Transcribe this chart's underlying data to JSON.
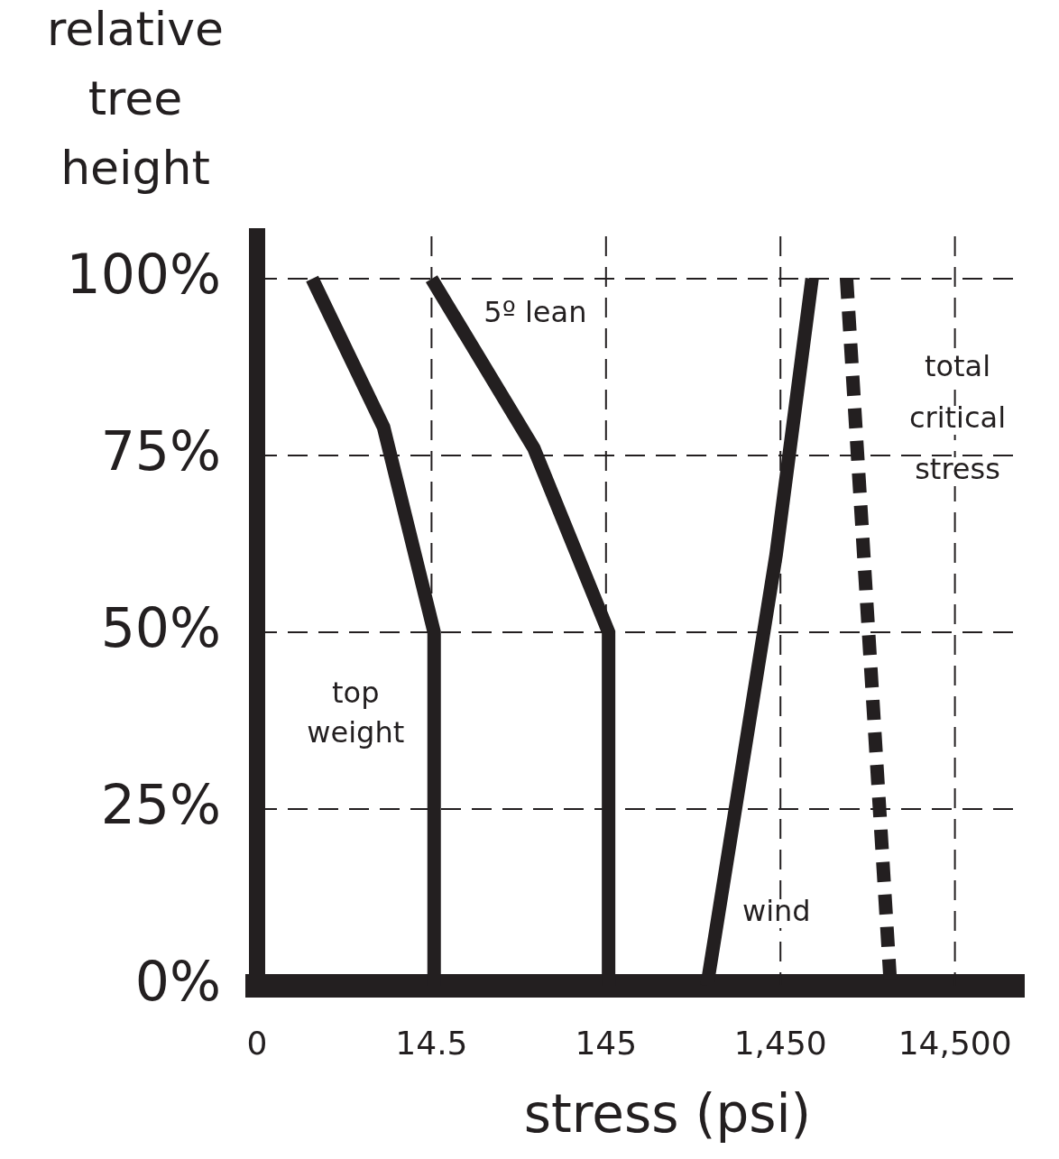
{
  "chart_data": {
    "type": "line",
    "xlabel": "stress (psi)",
    "ylabel": "relative tree height",
    "log": "x",
    "xlim": [
      0,
      36000
    ],
    "xticks": [
      0,
      14.5,
      145,
      {
        "value": 1450,
        "label": "1,450"
      },
      {
        "value": 14500,
        "label": "14,500"
      }
    ],
    "ylim": [
      0,
      106
    ],
    "yticks": [
      {
        "value": 0,
        "label": "0%"
      },
      {
        "value": 25,
        "label": "25%"
      },
      {
        "value": 50,
        "label": "50%"
      },
      {
        "value": 75,
        "label": "75%"
      },
      {
        "value": 100,
        "label": "100%"
      }
    ],
    "grid": true,
    "legend": false,
    "marker": "none",
    "series": [
      {
        "name": "top weight",
        "color": "#231f20",
        "line_style": "solid",
        "x": [
          3,
          7.7,
          15,
          15
        ],
        "values": [
          100,
          79,
          50,
          0
        ]
      },
      {
        "name": "5º lean",
        "color": "#231f20",
        "line_style": "solid",
        "x": [
          14.5,
          56,
          150,
          150
        ],
        "values": [
          100,
          76,
          50,
          0
        ]
      },
      {
        "name": "wind",
        "color": "#231f20",
        "line_style": "solid",
        "x": [
          550,
          1370,
          2200
        ],
        "values": [
          0,
          61,
          100
        ]
      },
      {
        "name": "total critical stress",
        "color": "#231f20",
        "line_style": "dashed",
        "x": [
          3470,
          6200
        ],
        "values": [
          100,
          0
        ]
      }
    ]
  }
}
